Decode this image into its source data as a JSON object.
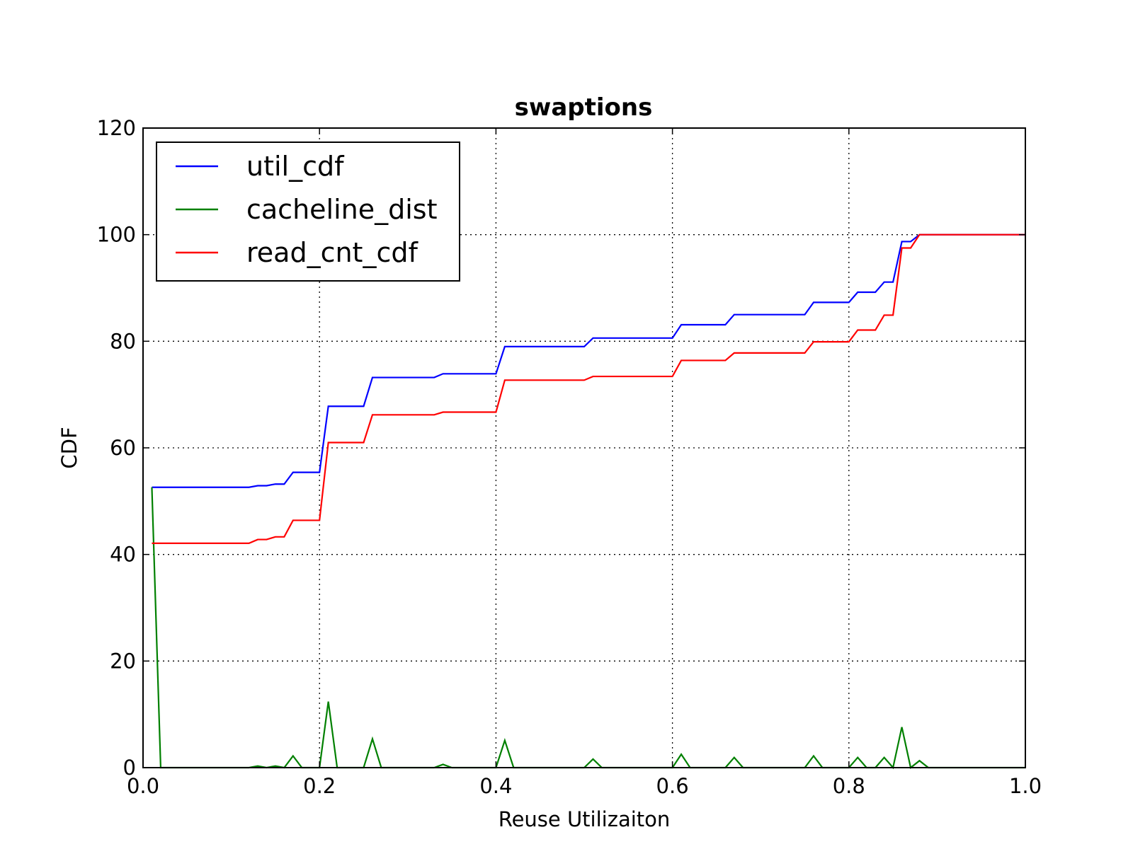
{
  "chart_data": {
    "type": "line",
    "title": "swaptions",
    "xlabel": "Reuse Utilizaiton",
    "ylabel": "CDF",
    "xlim": [
      0.0,
      1.0
    ],
    "ylim": [
      0,
      120
    ],
    "x_ticks": [
      0.0,
      0.2,
      0.4,
      0.6,
      0.8,
      1.0
    ],
    "x_tick_labels": [
      "0.0",
      "0.2",
      "0.4",
      "0.6",
      "0.8",
      "1.0"
    ],
    "y_ticks": [
      0,
      20,
      40,
      60,
      80,
      100,
      120
    ],
    "y_tick_labels": [
      "0",
      "20",
      "40",
      "60",
      "80",
      "100",
      "120"
    ],
    "grid": true,
    "legend_position": "top-left",
    "series": [
      {
        "name": "util_cdf",
        "color": "#0000ff",
        "points": [
          [
            0.01,
            52.6
          ],
          [
            0.12,
            52.6
          ],
          [
            0.13,
            52.9
          ],
          [
            0.14,
            52.9
          ],
          [
            0.15,
            53.2
          ],
          [
            0.16,
            53.2
          ],
          [
            0.17,
            55.4
          ],
          [
            0.2,
            55.4
          ],
          [
            0.21,
            67.8
          ],
          [
            0.25,
            67.8
          ],
          [
            0.26,
            73.2
          ],
          [
            0.33,
            73.2
          ],
          [
            0.34,
            73.9
          ],
          [
            0.4,
            73.9
          ],
          [
            0.41,
            79.0
          ],
          [
            0.5,
            79.0
          ],
          [
            0.51,
            80.6
          ],
          [
            0.6,
            80.6
          ],
          [
            0.61,
            83.1
          ],
          [
            0.66,
            83.1
          ],
          [
            0.67,
            85.0
          ],
          [
            0.75,
            85.0
          ],
          [
            0.76,
            87.3
          ],
          [
            0.8,
            87.3
          ],
          [
            0.81,
            89.2
          ],
          [
            0.83,
            89.2
          ],
          [
            0.84,
            91.1
          ],
          [
            0.85,
            91.1
          ],
          [
            0.86,
            98.7
          ],
          [
            0.87,
            98.7
          ],
          [
            0.88,
            100.0
          ],
          [
            1.0,
            100.0
          ]
        ]
      },
      {
        "name": "cacheline_dist",
        "color": "#008000",
        "points": [
          [
            0.01,
            52.6
          ],
          [
            0.02,
            0.0
          ],
          [
            0.12,
            0.0
          ],
          [
            0.13,
            0.3
          ],
          [
            0.14,
            0.0
          ],
          [
            0.15,
            0.3
          ],
          [
            0.16,
            0.0
          ],
          [
            0.17,
            2.2
          ],
          [
            0.18,
            0.0
          ],
          [
            0.2,
            0.0
          ],
          [
            0.21,
            12.4
          ],
          [
            0.22,
            0.0
          ],
          [
            0.25,
            0.0
          ],
          [
            0.26,
            5.4
          ],
          [
            0.27,
            0.0
          ],
          [
            0.33,
            0.0
          ],
          [
            0.34,
            0.6
          ],
          [
            0.35,
            0.0
          ],
          [
            0.4,
            0.0
          ],
          [
            0.41,
            5.1
          ],
          [
            0.42,
            0.0
          ],
          [
            0.5,
            0.0
          ],
          [
            0.51,
            1.6
          ],
          [
            0.52,
            0.0
          ],
          [
            0.6,
            0.0
          ],
          [
            0.61,
            2.5
          ],
          [
            0.62,
            0.0
          ],
          [
            0.66,
            0.0
          ],
          [
            0.67,
            1.9
          ],
          [
            0.68,
            0.0
          ],
          [
            0.75,
            0.0
          ],
          [
            0.76,
            2.2
          ],
          [
            0.77,
            0.0
          ],
          [
            0.8,
            0.0
          ],
          [
            0.81,
            1.9
          ],
          [
            0.82,
            0.0
          ],
          [
            0.83,
            0.0
          ],
          [
            0.84,
            1.9
          ],
          [
            0.85,
            0.0
          ],
          [
            0.86,
            7.6
          ],
          [
            0.87,
            0.0
          ],
          [
            0.88,
            1.3
          ],
          [
            0.89,
            0.0
          ],
          [
            1.0,
            0.0
          ]
        ]
      },
      {
        "name": "read_cnt_cdf",
        "color": "#ff0000",
        "points": [
          [
            0.01,
            42.1
          ],
          [
            0.12,
            42.1
          ],
          [
            0.13,
            42.8
          ],
          [
            0.14,
            42.8
          ],
          [
            0.15,
            43.3
          ],
          [
            0.16,
            43.3
          ],
          [
            0.17,
            46.4
          ],
          [
            0.2,
            46.4
          ],
          [
            0.21,
            61.0
          ],
          [
            0.25,
            61.0
          ],
          [
            0.26,
            66.2
          ],
          [
            0.33,
            66.2
          ],
          [
            0.34,
            66.7
          ],
          [
            0.4,
            66.7
          ],
          [
            0.41,
            72.7
          ],
          [
            0.5,
            72.7
          ],
          [
            0.51,
            73.4
          ],
          [
            0.6,
            73.4
          ],
          [
            0.61,
            76.4
          ],
          [
            0.66,
            76.4
          ],
          [
            0.67,
            77.8
          ],
          [
            0.75,
            77.8
          ],
          [
            0.76,
            79.9
          ],
          [
            0.8,
            79.9
          ],
          [
            0.81,
            82.1
          ],
          [
            0.83,
            82.1
          ],
          [
            0.84,
            84.9
          ],
          [
            0.85,
            84.9
          ],
          [
            0.86,
            97.5
          ],
          [
            0.87,
            97.5
          ],
          [
            0.88,
            100.0
          ],
          [
            1.0,
            100.0
          ]
        ]
      }
    ]
  }
}
